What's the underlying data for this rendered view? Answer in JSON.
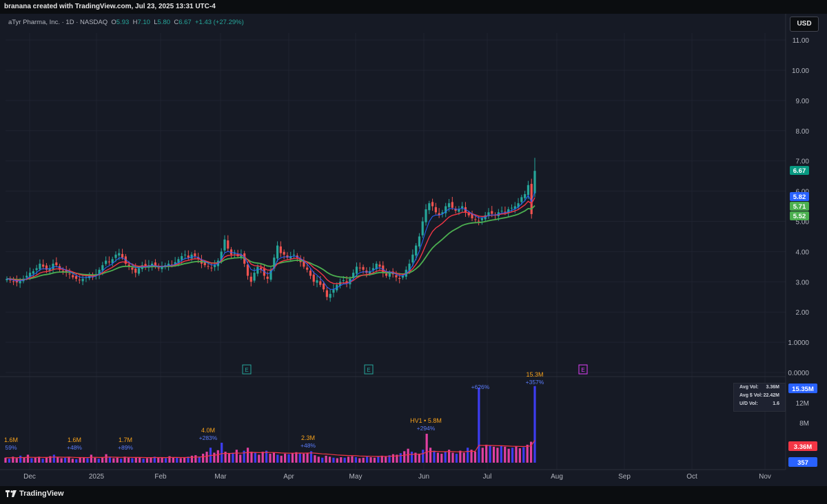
{
  "header": {
    "title": "branana created with TradingView.com, Jul 23, 2025 13:31 UTC-4"
  },
  "footer": {
    "brand": "TradingView"
  },
  "legend": {
    "symbol": "aTyr Pharma, Inc. · 1D · NASDAQ",
    "o_label": "O",
    "o_value": "5.93",
    "h_label": "H",
    "h_value": "7.10",
    "l_label": "L",
    "l_value": "5.80",
    "c_label": "C",
    "c_value": "6.67",
    "change": "+1.43 (+27.29%)"
  },
  "currency_button": "USD",
  "volume_stats": {
    "avg_vol_label": "Avg Vol:",
    "avg_vol": "3.36M",
    "avg_dollar_label": "Avg $ Vol:",
    "avg_dollar": "22.42M",
    "ud_label": "U/D Vol:",
    "ud": "1.6"
  },
  "colors": {
    "background": "#161a25",
    "up": "#26a69a",
    "down": "#ef5350",
    "ema_fast": "#2962ff",
    "ema_mid": "#f23645",
    "ema_slow": "#4caf50",
    "vol_blue": "#3d3df0",
    "vol_pink": "#e040a0",
    "label_orange": "#f7a21b"
  },
  "chart_data": {
    "type": "candlestick",
    "x_ticks": [
      "Dec",
      "2025",
      "Feb",
      "Mar",
      "Apr",
      "May",
      "Jun",
      "Jul",
      "Aug",
      "Sep",
      "Oct",
      "Nov"
    ],
    "y_ticks": [
      "11.00",
      "10.00",
      "9.00",
      "8.00",
      "7.00",
      "6.00",
      "5.00",
      "4.00",
      "3.00",
      "2.00",
      "1.0000",
      "0.0000"
    ],
    "price_badges": [
      {
        "label": "6.67",
        "value": 6.67,
        "color": "#089981"
      },
      {
        "label": "5.82",
        "value": 5.82,
        "color": "#2962ff"
      },
      {
        "label": "5.71",
        "value": 5.71,
        "color": "#4caf50"
      },
      {
        "label": "5.52",
        "value": 5.52,
        "color": "#4caf50"
      }
    ],
    "close": [
      3.1,
      3.05,
      3.0,
      2.98,
      3.05,
      3.1,
      3.2,
      3.3,
      3.35,
      3.45,
      3.6,
      3.5,
      3.4,
      3.45,
      3.6,
      3.55,
      3.4,
      3.35,
      3.3,
      3.25,
      3.15,
      3.1,
      3.05,
      3.1,
      3.15,
      3.2,
      3.15,
      3.25,
      3.4,
      3.55,
      3.7,
      3.65,
      3.75,
      3.9,
      3.95,
      3.8,
      3.6,
      3.5,
      3.4,
      3.3,
      3.45,
      3.55,
      3.5,
      3.55,
      3.6,
      3.5,
      3.45,
      3.5,
      3.55,
      3.6,
      3.55,
      3.65,
      3.75,
      3.85,
      3.9,
      3.8,
      3.9,
      3.85,
      3.75,
      3.6,
      3.55,
      3.5,
      3.45,
      3.55,
      3.7,
      4.0,
      4.4,
      4.1,
      3.9,
      3.95,
      3.85,
      3.9,
      3.6,
      3.2,
      3.0,
      3.3,
      3.5,
      3.4,
      3.2,
      3.1,
      3.4,
      3.8,
      4.2,
      3.95,
      3.9,
      3.8,
      3.85,
      3.9,
      3.8,
      3.65,
      3.5,
      3.4,
      3.2,
      3.0,
      3.05,
      2.9,
      2.75,
      2.5,
      2.6,
      2.75,
      2.9,
      3.0,
      3.05,
      2.95,
      3.1,
      3.3,
      3.5,
      3.45,
      3.4,
      3.3,
      3.35,
      3.45,
      3.6,
      3.5,
      3.3,
      3.2,
      3.3,
      3.25,
      3.15,
      3.1,
      3.2,
      3.4,
      3.6,
      3.9,
      4.2,
      4.5,
      5.0,
      5.4,
      5.6,
      5.5,
      5.3,
      5.2,
      5.3,
      5.5,
      5.6,
      5.45,
      5.35,
      5.4,
      5.5,
      5.3,
      5.2,
      5.1,
      5.05,
      5.0,
      5.1,
      5.2,
      5.3,
      5.25,
      5.2,
      5.3,
      5.35,
      5.3,
      5.4,
      5.45,
      5.5,
      5.6,
      5.8,
      5.9,
      6.2,
      5.24,
      6.67
    ],
    "ema_fast_last": 5.82,
    "ema_mid_last": 5.71,
    "ema_slow_last": 5.52,
    "earnings_markers": [
      {
        "label": "E",
        "date": "Mar",
        "color": "#26a69a"
      },
      {
        "label": "E",
        "date": "May",
        "color": "#26a69a"
      },
      {
        "label": "E",
        "date": "Aug",
        "color": "#e040fb"
      }
    ],
    "volume": {
      "y_ticks": [
        "12M",
        "8M"
      ],
      "badges": [
        {
          "label": "3.36M",
          "color": "#f23645"
        },
        {
          "label": "357",
          "color": "#2962ff"
        },
        {
          "label": "15.35M",
          "color": "#2962ff"
        }
      ],
      "annotations": [
        {
          "value": "1.6M",
          "pct": "59%"
        },
        {
          "value": "1.6M",
          "pct": "+48%"
        },
        {
          "value": "1.7M",
          "pct": "+89%"
        },
        {
          "value": "4.0M",
          "pct": "+283%"
        },
        {
          "value": "2.3M",
          "pct": "+48%"
        },
        {
          "value": "HV1 • 5.8M",
          "pct": "+294%"
        },
        {
          "value": "",
          "pct": "+626%"
        },
        {
          "value": "15.3M",
          "pct": "+357%"
        }
      ],
      "values_m": [
        1.0,
        0.8,
        1.2,
        0.9,
        1.4,
        1.1,
        1.6,
        0.9,
        1.0,
        1.2,
        0.8,
        1.0,
        1.3,
        1.6,
        1.1,
        0.9,
        1.0,
        1.2,
        0.8,
        0.7,
        1.0,
        1.1,
        0.9,
        1.6,
        1.0,
        0.8,
        1.1,
        1.7,
        1.2,
        0.9,
        1.0,
        0.8,
        1.2,
        1.0,
        0.9,
        1.1,
        1.0,
        0.8,
        0.9,
        1.0,
        1.2,
        1.1,
        1.0,
        0.9,
        1.3,
        1.1,
        1.0,
        0.9,
        1.0,
        1.2,
        1.4,
        1.5,
        1.2,
        1.8,
        2.2,
        3.0,
        2.0,
        2.5,
        4.0,
        2.2,
        1.8,
        2.0,
        2.6,
        1.6,
        2.4,
        3.0,
        2.2,
        2.0,
        1.6,
        2.2,
        2.4,
        1.8,
        2.0,
        1.6,
        1.4,
        1.8,
        1.7,
        1.9,
        2.1,
        2.0,
        1.8,
        2.0,
        2.3,
        1.5,
        1.2,
        1.0,
        1.4,
        1.2,
        1.0,
        0.9,
        1.1,
        1.0,
        1.2,
        1.3,
        1.1,
        0.9,
        1.0,
        1.2,
        1.1,
        1.0,
        1.3,
        1.4,
        1.2,
        1.5,
        1.7,
        1.6,
        1.9,
        2.3,
        2.8,
        2.2,
        2.0,
        1.8,
        2.6,
        5.8,
        3.0,
        2.4,
        2.0,
        1.8,
        2.2,
        2.6,
        2.0,
        1.8,
        2.4,
        2.0,
        3.0,
        2.6,
        2.2,
        15.0,
        3.0,
        3.6,
        3.4,
        3.2,
        3.0,
        3.4,
        3.2,
        2.8,
        3.0,
        3.3,
        2.9,
        3.1,
        3.6,
        4.2,
        15.35
      ]
    }
  }
}
